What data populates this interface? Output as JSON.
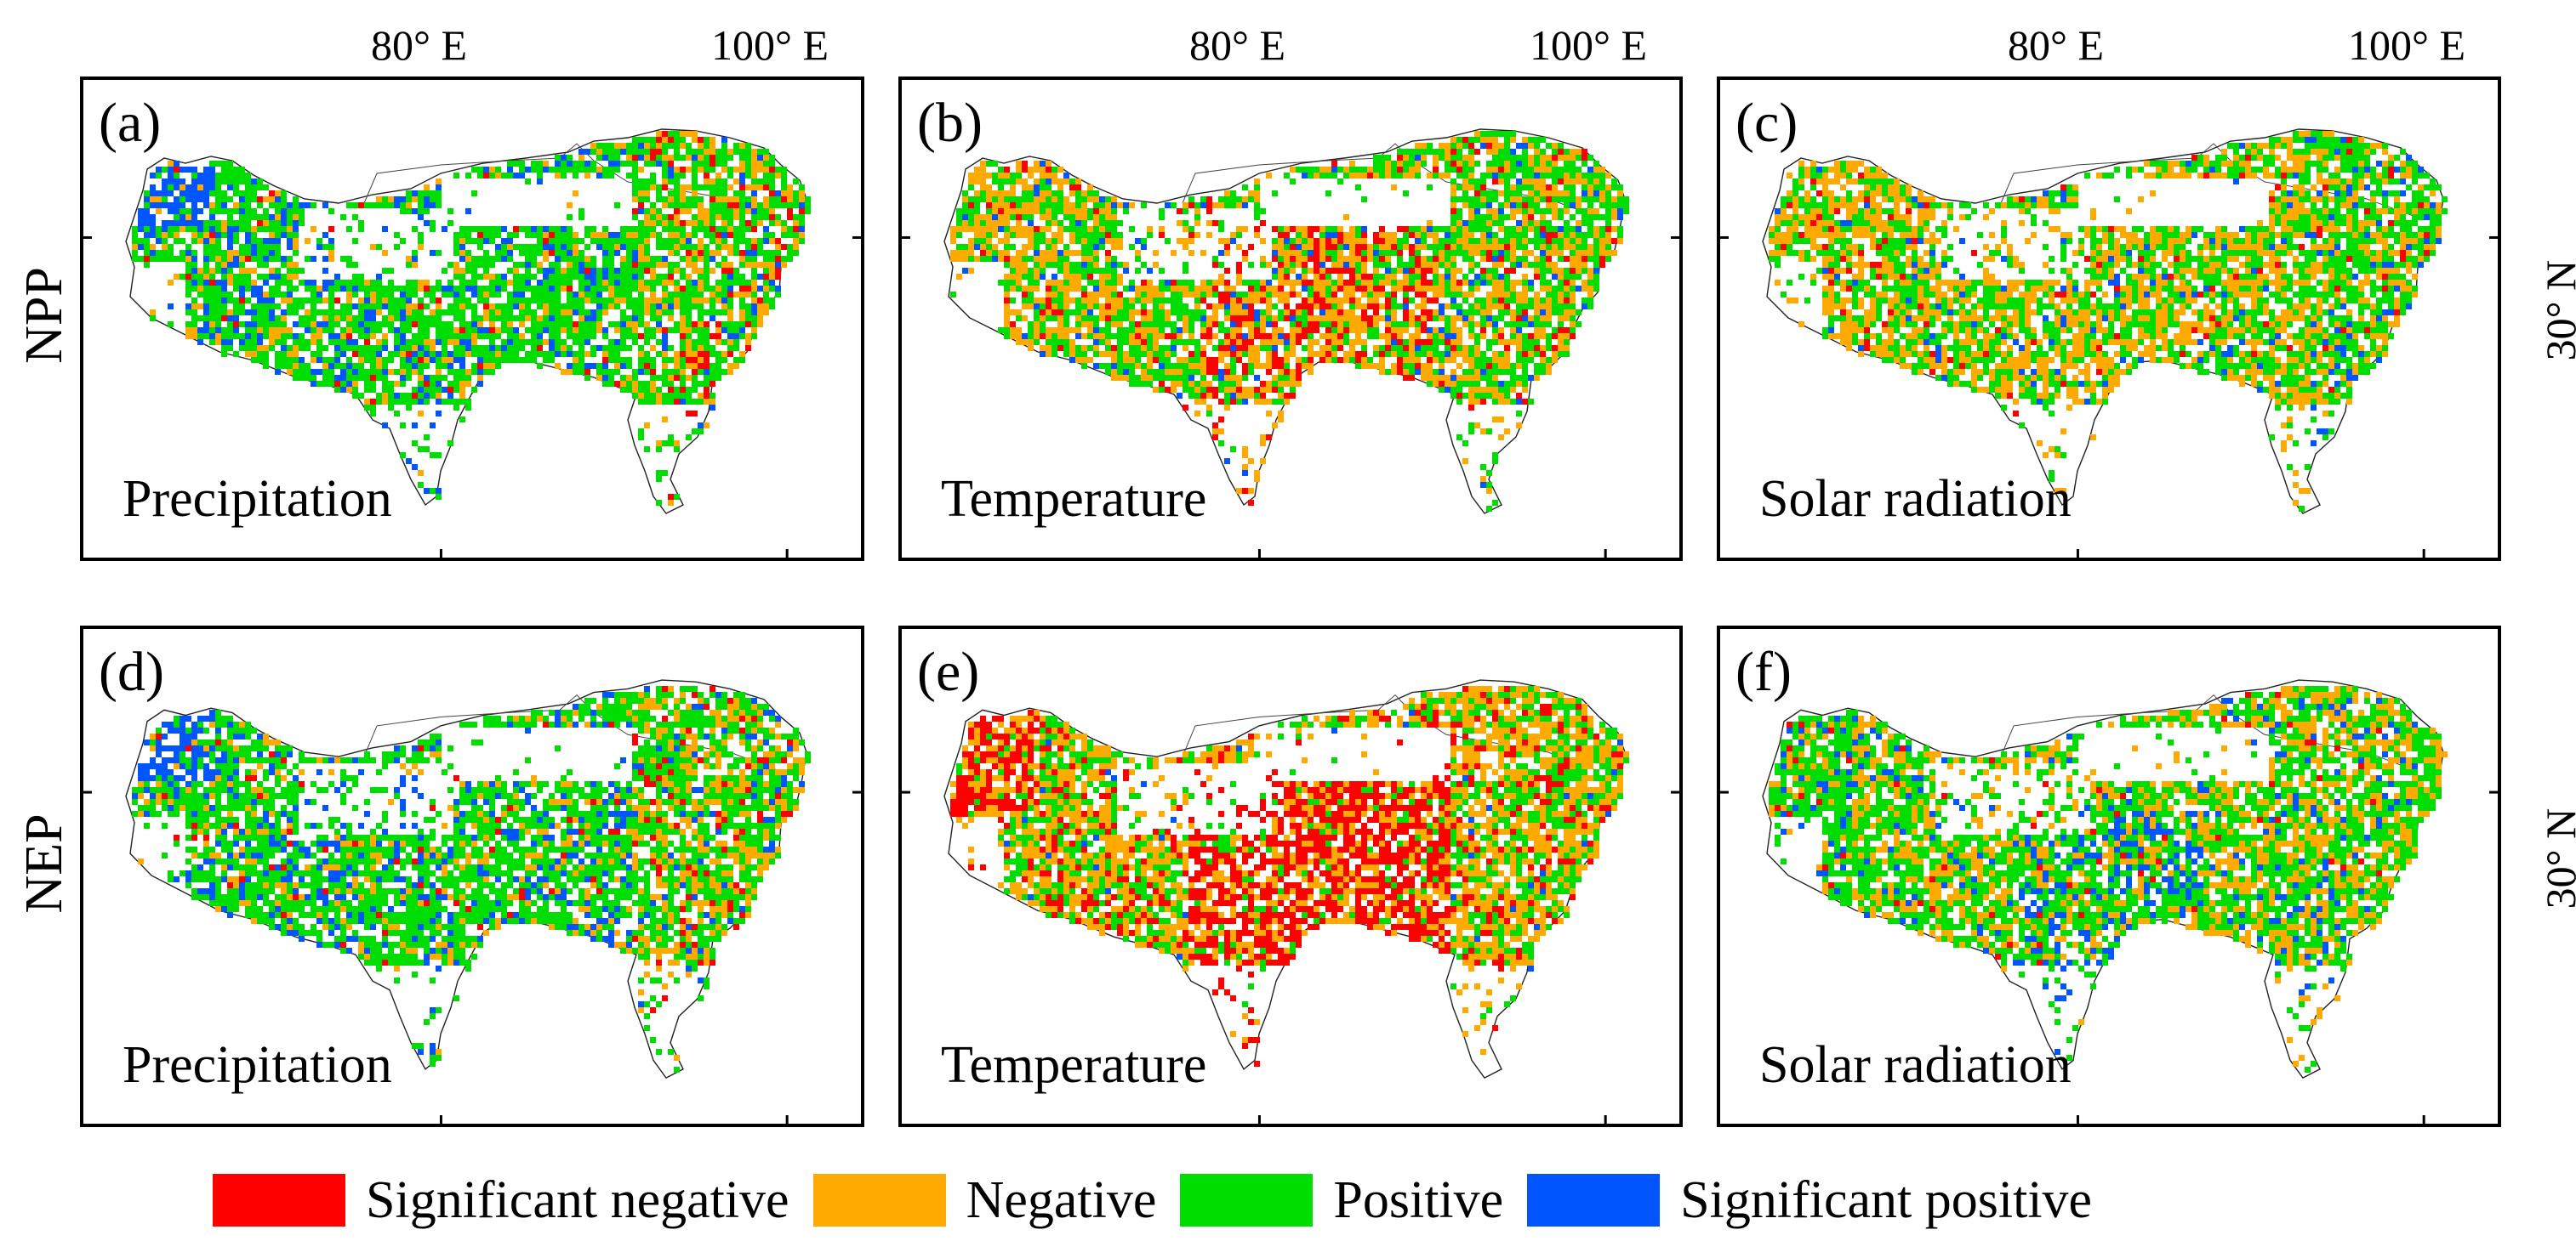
{
  "figure": {
    "lon_labels": [
      "80° E",
      "100° E"
    ],
    "lat_label": "30° N",
    "rows": [
      {
        "label": "NPP",
        "panels": [
          {
            "letter": "(a)",
            "variable": "Precipitation",
            "pattern": "precip"
          },
          {
            "letter": "(b)",
            "variable": "Temperature",
            "pattern": "temp_npp"
          },
          {
            "letter": "(c)",
            "variable": "Solar radiation",
            "pattern": "solar"
          }
        ]
      },
      {
        "label": "NEP",
        "panels": [
          {
            "letter": "(d)",
            "variable": "Precipitation",
            "pattern": "precip"
          },
          {
            "letter": "(e)",
            "variable": "Temperature",
            "pattern": "temp_nep"
          },
          {
            "letter": "(f)",
            "variable": "Solar radiation",
            "pattern": "solar2"
          }
        ]
      }
    ]
  },
  "legend": [
    {
      "label": "Significant negative",
      "color": "#ff0000"
    },
    {
      "label": "Negative",
      "color": "#ffaa00"
    },
    {
      "label": "Positive",
      "color": "#00dd00"
    },
    {
      "label": "Significant positive",
      "color": "#0055ff"
    }
  ]
}
